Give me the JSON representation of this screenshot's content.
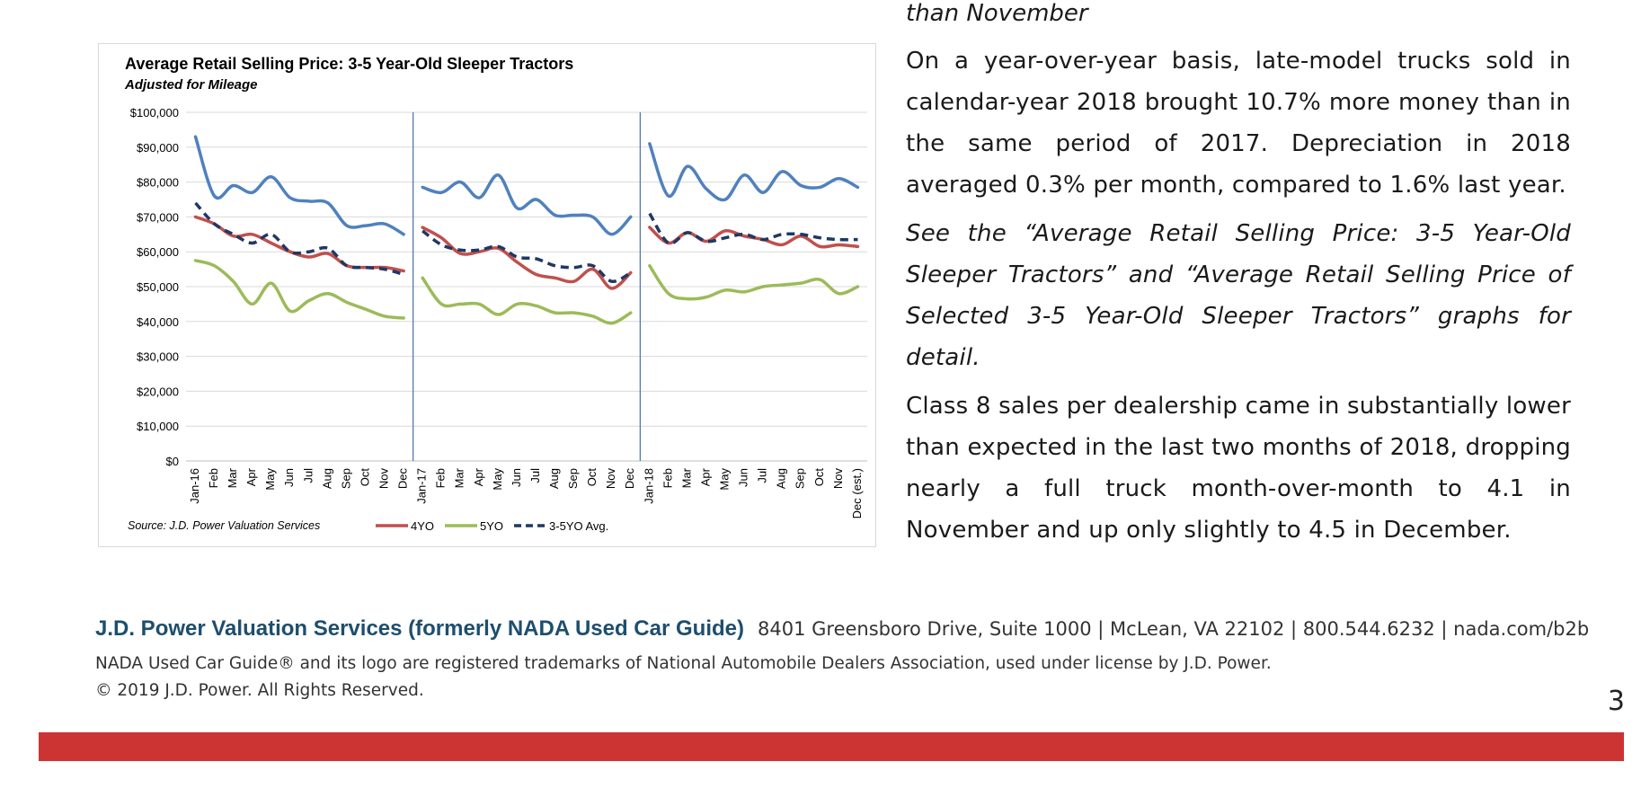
{
  "top_fragment": "than November",
  "paragraphs": [
    "On a year-over-year basis, late-model trucks sold in calendar-year 2018 brought 10.7% more money than in the same period of 2017. Depreciation in 2018 averaged 0.3% per month, compared to 1.6% last year.",
    "See the “Average Retail Selling Price: 3-5 Year-Old Sleeper Tractors” and “Average Retail Selling Price of Selected 3-5 Year-Old Sleeper Tractors” graphs for detail.",
    "Class 8 sales per dealership came in substantially lower than expected in the last two months of 2018, dropping nearly a full truck month-over-month to 4.1 in November and up only slightly to 4.5 in December."
  ],
  "footer": {
    "brand": "J.D. Power Valuation Services (formerly NADA Used Car Guide)",
    "address": "8401 Greensboro Drive, Suite 1000 | McLean, VA 22102 | 800.544.6232 | nada.com/b2b",
    "trademark": "NADA Used Car Guide® and its logo are registered trademarks of National Automobile Dealers Association, used under license by J.D. Power.",
    "copyright": "© 2019 J.D. Power. All Rights Reserved."
  },
  "page_number": "3",
  "colors": {
    "red_bar": "#cc3333",
    "brand_blue": "#1d4e6e"
  },
  "chart_data": {
    "type": "line",
    "title": "Average Retail Selling Price: 3-5 Year-Old Sleeper Tractors",
    "subtitle": "Adjusted for Mileage",
    "source": "Source: J.D. Power Valuation Services",
    "ylim": [
      0,
      100000
    ],
    "y_ticks": [
      "$0",
      "$10,000",
      "$20,000",
      "$30,000",
      "$40,000",
      "$50,000",
      "$60,000",
      "$70,000",
      "$80,000",
      "$90,000",
      "$100,000"
    ],
    "categories": [
      "Jan-16",
      "Feb",
      "Mar",
      "Apr",
      "May",
      "Jun",
      "Jul",
      "Aug",
      "Sep",
      "Oct",
      "Nov",
      "Dec",
      "Jan-17",
      "Feb",
      "Mar",
      "Apr",
      "May",
      "Jun",
      "Jul",
      "Aug",
      "Sep",
      "Oct",
      "Nov",
      "Dec",
      "Jan-18",
      "Feb",
      "Mar",
      "Apr",
      "May",
      "Jun",
      "Jul",
      "Aug",
      "Sep",
      "Oct",
      "Nov",
      "Dec (est.)"
    ],
    "year_breaks_after": [
      12,
      24
    ],
    "grid": true,
    "legend_position": "bottom",
    "series": [
      {
        "name": "",
        "color": "#4f81bd",
        "dash": false,
        "values": [
          93000,
          76000,
          79000,
          77000,
          81500,
          75500,
          74500,
          74000,
          67500,
          67500,
          68000,
          65000,
          78500,
          77000,
          80000,
          75500,
          82000,
          72500,
          75000,
          70500,
          70500,
          70000,
          65000,
          70000,
          91000,
          76000,
          84500,
          78000,
          75000,
          82000,
          77000,
          83000,
          79000,
          78500,
          81000,
          78500
        ]
      },
      {
        "name": "4YO",
        "color": "#c0504d",
        "dash": false,
        "values": [
          70000,
          68000,
          64500,
          65000,
          62500,
          60000,
          58500,
          59500,
          56000,
          55500,
          55500,
          54500,
          67000,
          64000,
          59500,
          60000,
          61000,
          57000,
          53500,
          52500,
          51500,
          55000,
          49500,
          54000,
          67000,
          62500,
          65500,
          63000,
          66000,
          64500,
          63500,
          62000,
          64500,
          61500,
          62000,
          61500
        ]
      },
      {
        "name": "5YO",
        "color": "#9bbb59",
        "dash": false,
        "values": [
          57500,
          56000,
          51500,
          45000,
          51000,
          43000,
          46000,
          48000,
          45500,
          43500,
          41500,
          41000,
          52500,
          45000,
          45000,
          45000,
          42000,
          45000,
          44500,
          42500,
          42500,
          41500,
          39500,
          42500,
          56000,
          48000,
          46500,
          47000,
          49000,
          48500,
          50000,
          50500,
          51000,
          52000,
          48000,
          50000
        ]
      },
      {
        "name": "3-5YO Avg.",
        "color": "#1f3864",
        "dash": true,
        "values": [
          74000,
          68000,
          65000,
          62500,
          65000,
          60000,
          60000,
          61000,
          56000,
          55500,
          55000,
          53500,
          66000,
          62000,
          60500,
          60500,
          61500,
          58500,
          58000,
          56000,
          55500,
          56000,
          51500,
          54000,
          71000,
          62500,
          65500,
          63000,
          64000,
          65000,
          63500,
          65000,
          65000,
          64000,
          63500,
          63500
        ]
      }
    ]
  }
}
